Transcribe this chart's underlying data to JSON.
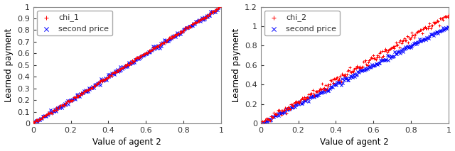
{
  "subplot1": {
    "xlabel": "Value of agent 2",
    "ylabel": "Learned payment",
    "xlim": [
      0,
      1
    ],
    "ylim": [
      0,
      1
    ],
    "xticks": [
      0,
      0.2,
      0.4,
      0.6,
      0.8,
      1.0
    ],
    "yticks": [
      0.0,
      0.1,
      0.2,
      0.3,
      0.4,
      0.5,
      0.6,
      0.7,
      0.8,
      0.9,
      1.0
    ],
    "chi_label": "chi_1",
    "sp_label": "second price",
    "chi_slope": 1.0,
    "chi_intercept": 0.0,
    "sp_slope": 1.0,
    "sp_intercept": 0.0,
    "chi_color": "red",
    "sp_color": "blue",
    "n_points": 200,
    "chi_noise_std": 0.006,
    "sp_noise_std": 0.01
  },
  "subplot2": {
    "xlabel": "Value of agent 2",
    "ylabel": "Learned payment",
    "xlim": [
      0,
      1
    ],
    "ylim": [
      0,
      1.2
    ],
    "xticks": [
      0,
      0.2,
      0.4,
      0.6,
      0.8,
      1.0
    ],
    "yticks": [
      0.0,
      0.2,
      0.4,
      0.6,
      0.8,
      1.0,
      1.2
    ],
    "chi_label": "chi_2",
    "sp_label": "second price",
    "chi_slope": 1.12,
    "chi_intercept": 0.0,
    "sp_slope": 1.0,
    "sp_intercept": 0.0,
    "chi_color": "red",
    "sp_color": "blue",
    "n_points": 200,
    "chi_noise_std": 0.018,
    "sp_noise_std": 0.012
  },
  "background_color": "#ffffff",
  "axes_bg_color": "#ffffff",
  "marker_size": 3.0,
  "font_size": 8.5,
  "tick_font_size": 8.0,
  "spine_color": "#888888"
}
